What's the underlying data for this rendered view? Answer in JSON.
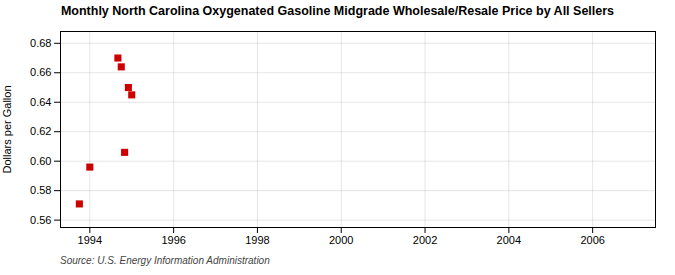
{
  "chart_data": {
    "type": "scatter",
    "title": "Monthly North Carolina Oxygenated Gasoline Midgrade Wholesale/Resale Price by All Sellers",
    "ylabel": "Dollars per Gallon",
    "source": "Source: U.S. Energy Information Administration",
    "x": [
      1993.75,
      1994.0,
      1994.67,
      1994.75,
      1994.92,
      1995.0,
      1994.83
    ],
    "values": [
      0.571,
      0.596,
      0.67,
      0.664,
      0.65,
      0.645,
      0.606
    ],
    "color": "#cc0000",
    "marker": "square",
    "xlim": [
      1993.3,
      2007.5
    ],
    "ylim": [
      0.555,
      0.688
    ],
    "xticks": [
      1994,
      1996,
      1998,
      2000,
      2002,
      2004,
      2006
    ],
    "yticks": [
      0.56,
      0.58,
      {
        "value": 0.6,
        "label": "0.60"
      },
      0.62,
      0.64,
      0.66,
      0.68
    ],
    "grid": true
  }
}
